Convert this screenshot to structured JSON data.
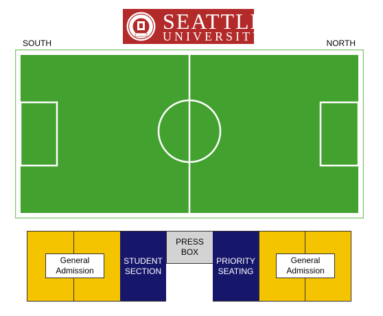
{
  "logo": {
    "line1": "SEATTLE",
    "line2": "UNIVERSITY",
    "seal_year": "1891",
    "color": "#b22a2a"
  },
  "directions": {
    "south": "SOUTH",
    "north": "NORTH"
  },
  "field": {
    "grass_color": "#43a12f",
    "line_color": "#ffffff",
    "border_color": "#7cc46a"
  },
  "seating": {
    "sections": [
      {
        "label": "General\nAdmission",
        "color": "#f5c400"
      },
      {
        "label": "STUDENT\nSECTION",
        "color": "#16166b"
      },
      {
        "label": "PRESS\nBOX",
        "color": "#d3d3d3"
      },
      {
        "label": "PRIORITY\nSEATING",
        "color": "#16166b"
      },
      {
        "label": "General\nAdmission",
        "color": "#f5c400"
      }
    ]
  }
}
